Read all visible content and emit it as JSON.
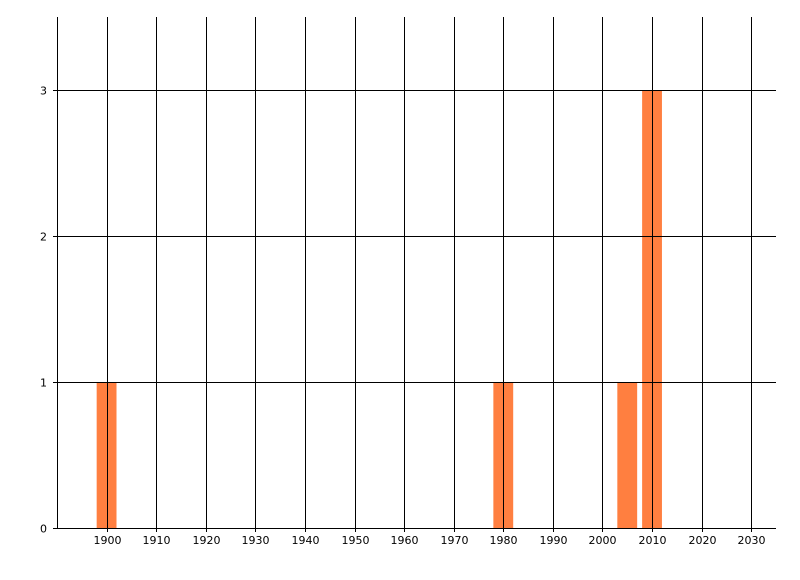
{
  "chart_data": {
    "type": "bar",
    "title": "",
    "xlabel": "",
    "ylabel": "",
    "x": [
      1900,
      1980,
      2005,
      2010
    ],
    "values": [
      1,
      1,
      1,
      3
    ],
    "bar_width_years": 4,
    "xlim": [
      1890,
      2035
    ],
    "ylim": [
      0,
      3.5
    ],
    "xticks": [
      "1900",
      "1910",
      "1920",
      "1930",
      "1940",
      "1950",
      "1960",
      "1970",
      "1980",
      "1990",
      "2000",
      "2010",
      "2020",
      "2030"
    ],
    "yticks": [
      "0",
      "1",
      "2",
      "3"
    ],
    "grid": true,
    "legend": "none",
    "bar_color": "#FF7F40",
    "grid_color": "#000000"
  }
}
